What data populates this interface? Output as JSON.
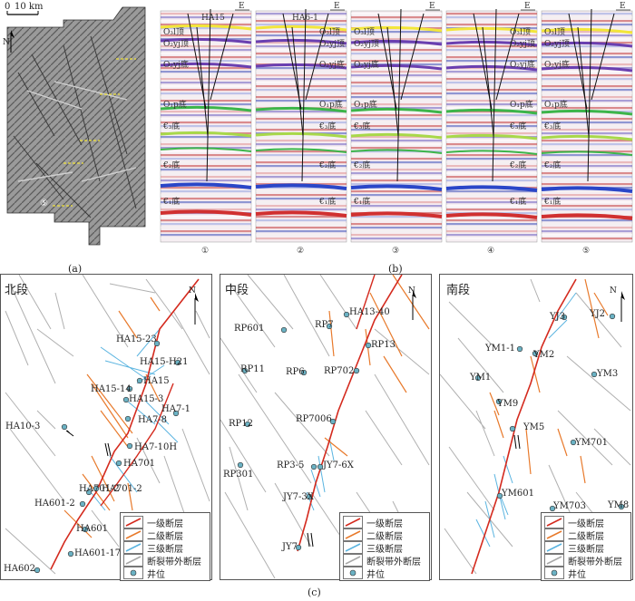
{
  "panel_a": {
    "scale_zero": "0",
    "scale_label": "10 km",
    "north": "N",
    "line_number": "⑤",
    "caption": "(a)"
  },
  "panel_b": {
    "caption": "(b)",
    "east": "E",
    "wells": [
      "HA15",
      "HA6-1"
    ],
    "horizons": [
      "O₃l顶",
      "O₃l底",
      "O₂yj顶",
      "O₂yj底",
      "O₁p底",
      "€₃底",
      "€₂底",
      "€₁底"
    ],
    "profile_numbers": [
      "①",
      "②",
      "③",
      "④",
      "⑤"
    ]
  },
  "panel_c": {
    "caption": "(c)",
    "north": "N",
    "titles": [
      "北段",
      "中段",
      "南段"
    ],
    "legend": [
      "一级断层",
      "二级断层",
      "三级断层",
      "断裂带外断层",
      "井位"
    ],
    "colors": {
      "level1": "#d42a1e",
      "level2": "#e87a2c",
      "level3": "#5ab4e0",
      "outside": "#a8a8a8",
      "well": "#6bb2c4"
    },
    "north_wells": [
      "HA15-23",
      "HA15-H21",
      "HA15",
      "HA15-14",
      "HA15-3",
      "HA7-1",
      "HA7-8",
      "HA10-3",
      "HA7-10H",
      "HA701",
      "HA701-2",
      "HA701-2",
      "HA601-2",
      "HA601",
      "HA601-17",
      "HA602"
    ],
    "middle_wells": [
      "HA13-40",
      "RP601",
      "RP7",
      "RP13",
      "RP11",
      "RP6",
      "RP702",
      "RP7006",
      "RP12",
      "RP3-5",
      "JY7-6X",
      "RP301",
      "JY7-3X",
      "JY7"
    ],
    "south_wells": [
      "YJ3",
      "YJ2",
      "YM1-1",
      "YM2",
      "YM1",
      "YM3",
      "YM9",
      "YM5",
      "YM701",
      "YM601",
      "YM703",
      "YM8"
    ]
  }
}
